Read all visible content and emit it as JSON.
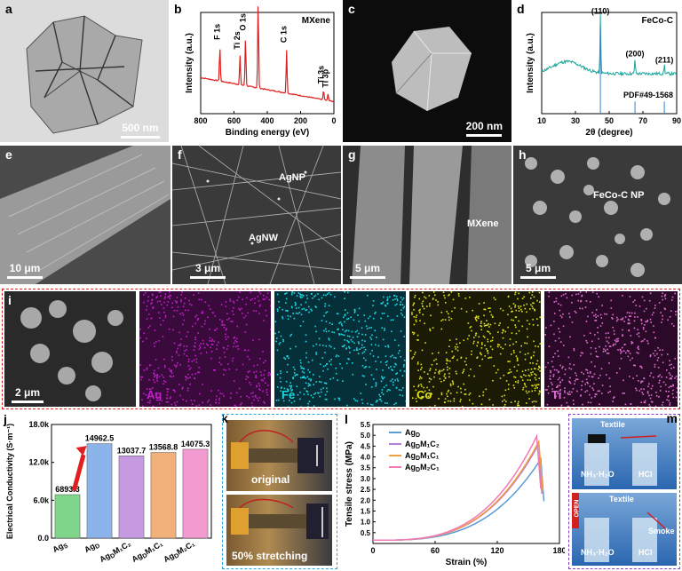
{
  "panels": {
    "a": {
      "label": "a",
      "scale": "500 nm"
    },
    "b": {
      "label": "b"
    },
    "c": {
      "label": "c",
      "scale": "200 nm"
    },
    "d": {
      "label": "d"
    },
    "e": {
      "label": "e",
      "scale": "10 μm"
    },
    "f": {
      "label": "f",
      "scale": "3 μm",
      "annot1": "AgNP",
      "annot2": "AgNW"
    },
    "g": {
      "label": "g",
      "scale": "5 μm",
      "annot1": "MXene"
    },
    "h": {
      "label": "h",
      "scale": "5 μm",
      "annot1": "FeCo-C NP"
    },
    "i": {
      "label": "i",
      "scale": "2 μm"
    },
    "j": {
      "label": "j"
    },
    "k": {
      "label": "k",
      "text1": "original",
      "text2": "50% stretching"
    },
    "l": {
      "label": "l"
    },
    "m": {
      "label": "m",
      "textile1": "Textile",
      "textile2": "Textile",
      "nh3": "NH₃·H₂O",
      "hcl": "HCl",
      "nh3b": "NH₃·H₂O",
      "hclb": "HCl",
      "open": "OPEN",
      "smoke": "Smoke"
    }
  },
  "eds_maps": [
    {
      "label": "Ag",
      "color": "#c020c8",
      "bg": "#3a0a3c"
    },
    {
      "label": "Fe",
      "color": "#20d8e0",
      "bg": "#05303a"
    },
    {
      "label": "Co",
      "color": "#e0e020",
      "bg": "#1a1a05"
    },
    {
      "label": "Ti",
      "color": "#e070d0",
      "bg": "#2a0a28"
    }
  ],
  "chart_data": [
    {
      "id": "b",
      "type": "line",
      "title": "MXene",
      "xlabel": "Binding energy (eV)",
      "ylabel": "Intensity (a.u.)",
      "xlim": [
        800,
        0
      ],
      "xticks": [
        "800",
        "600",
        "400",
        "200",
        "0"
      ],
      "color": "#e02020",
      "peaks": [
        {
          "x": 685,
          "h": 0.35,
          "label": "F 1s"
        },
        {
          "x": 564,
          "h": 0.3,
          "label": "Ti 2s"
        },
        {
          "x": 531,
          "h": 0.5,
          "label": "O 1s"
        },
        {
          "x": 455,
          "h": 0.9,
          "label": "Ti 2p"
        },
        {
          "x": 284,
          "h": 0.45,
          "label": "C 1s"
        },
        {
          "x": 62,
          "h": 0.1,
          "label": "Ti 3s"
        },
        {
          "x": 35,
          "h": 0.07,
          "label": "Ti 3p"
        }
      ]
    },
    {
      "id": "d",
      "type": "line",
      "title": "FeCo-C",
      "xlabel": "2θ (degree)",
      "ylabel": "Intensity (a.u.)",
      "xlim": [
        10,
        90
      ],
      "xticks": [
        "10",
        "30",
        "50",
        "70",
        "90"
      ],
      "color": "#1aa39a",
      "ref_color": "#3a7fd0",
      "ref_label": "PDF#49-1568",
      "peaks": [
        {
          "x": 44.8,
          "h": 0.95,
          "label": "(110)"
        },
        {
          "x": 65.3,
          "h": 0.25,
          "label": "(200)"
        },
        {
          "x": 82.7,
          "h": 0.15,
          "label": "(211)"
        }
      ]
    },
    {
      "id": "j",
      "type": "bar",
      "ylabel": "Electrical Conductivity (S·m⁻¹)",
      "ylim": [
        0,
        18000
      ],
      "yticks": [
        "0.0",
        "6.0k",
        "12.0k",
        "18.0k"
      ],
      "categories": [
        "Ag",
        "Ag",
        "AgM₁C₂",
        "AgM₁C₁",
        "AgM₂C₁"
      ],
      "category_subs": [
        "S",
        "D",
        "D",
        "D",
        "D"
      ],
      "values": [
        6893.3,
        14962.5,
        13037.7,
        13568.8,
        14075.3
      ],
      "value_labels": [
        "6893.3",
        "14962.5",
        "13037.7",
        "13568.8",
        "14075.3"
      ],
      "colors": [
        "#7fd68a",
        "#8ab4ea",
        "#c59ae0",
        "#f2b07a",
        "#f39ad0"
      ]
    },
    {
      "id": "l",
      "type": "line",
      "xlabel": "Strain (%)",
      "ylabel": "Tensile stress (MPa)",
      "xlim": [
        0,
        180
      ],
      "ylim": [
        0,
        5.5
      ],
      "xticks": [
        "0",
        "60",
        "120",
        "180"
      ],
      "yticks": [
        "0.5",
        "1.0",
        "1.5",
        "2.0",
        "2.5",
        "3.0",
        "3.5",
        "4.0",
        "4.5",
        "5.0",
        "5.5"
      ],
      "series": [
        {
          "name": "AgD",
          "sub": "D",
          "rest": "",
          "color": "#5b9bd5",
          "max_x": 162,
          "max_y": 3.9
        },
        {
          "name": "AgDM1C2",
          "sub": "D",
          "rest": "M₁C₂",
          "color": "#b57edc",
          "max_x": 160,
          "max_y": 4.6
        },
        {
          "name": "AgDM1C1",
          "sub": "D",
          "rest": "M₁C₁",
          "color": "#f0a040",
          "max_x": 161,
          "max_y": 4.8
        },
        {
          "name": "AgDM2C1",
          "sub": "D",
          "rest": "M₂C₁",
          "color": "#f07ab8",
          "max_x": 159,
          "max_y": 5.05
        }
      ]
    }
  ]
}
